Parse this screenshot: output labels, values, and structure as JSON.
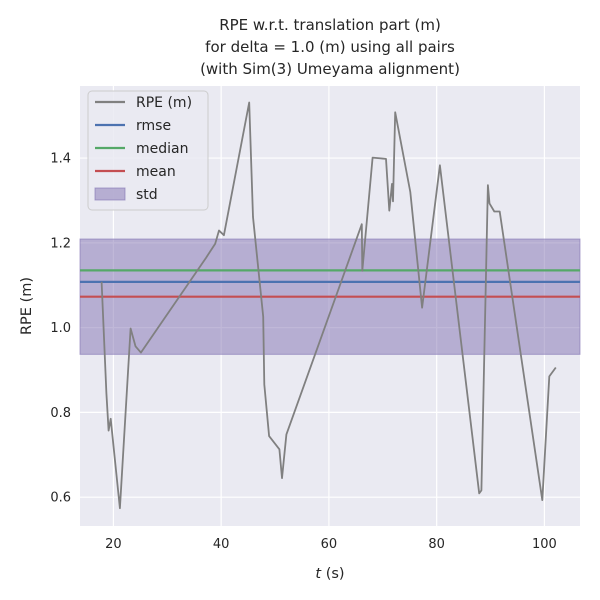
{
  "chart_data": {
    "type": "line",
    "title_lines": [
      "RPE w.r.t. translation part (m)",
      "for delta = 1.0 (m) using all pairs",
      "(with Sim(3) Umeyama alignment)"
    ],
    "xlabel_italic": "t",
    "xlabel_rest": " (s)",
    "ylabel": "RPE (m)",
    "xlim": [
      13.8,
      106.6
    ],
    "ylim": [
      0.532,
      1.57
    ],
    "xticks": [
      20,
      40,
      60,
      80,
      100
    ],
    "yticks": [
      0.6,
      0.8,
      1.0,
      1.2,
      1.4
    ],
    "ytick_labels": [
      "0.6",
      "0.8",
      "1.0",
      "1.2",
      "1.4"
    ],
    "grid": true,
    "legend_position": "top-left",
    "series": [
      {
        "name": "RPE (m)",
        "color": "#808080",
        "x": [
          17.8,
          18.7,
          19.1,
          19.5,
          21.2,
          23.2,
          24.1,
          25.1,
          37.2,
          38.9,
          39.6,
          40.5,
          45.2,
          45.9,
          47.8,
          48.0,
          48.9,
          50.8,
          51.3,
          52.1,
          66.1,
          66.2,
          68.1,
          70.6,
          71.2,
          71.7,
          71.9,
          72.3,
          75.1,
          77.3,
          80.6,
          87.9,
          88.3,
          89.5,
          89.8,
          90.7,
          91.7,
          99.6,
          100.9,
          102.1
        ],
        "y": [
          1.108,
          0.845,
          0.757,
          0.785,
          0.574,
          0.998,
          0.956,
          0.941,
          1.165,
          1.198,
          1.229,
          1.218,
          1.531,
          1.261,
          1.026,
          0.866,
          0.744,
          0.713,
          0.645,
          0.748,
          1.244,
          1.134,
          1.401,
          1.398,
          1.276,
          1.339,
          1.298,
          1.508,
          1.32,
          1.047,
          1.383,
          0.609,
          0.616,
          1.336,
          1.293,
          1.274,
          1.274,
          0.593,
          0.885,
          0.906
        ]
      }
    ],
    "stats": {
      "rmse": 1.108,
      "median": 1.135,
      "mean": 1.073,
      "std_low": 0.937,
      "std_high": 1.209
    },
    "legend": [
      {
        "label": "RPE (m)",
        "kind": "line",
        "color": "#808080"
      },
      {
        "label": "rmse",
        "kind": "line",
        "color": "#4c72b0"
      },
      {
        "label": "median",
        "kind": "line",
        "color": "#55a868"
      },
      {
        "label": "mean",
        "kind": "line",
        "color": "#c44e52"
      },
      {
        "label": "std",
        "kind": "patch",
        "color": "#8172b2"
      }
    ],
    "colors": {
      "background": "#eaeaf2",
      "grid": "#ffffff",
      "rmse": "#4c72b0",
      "median": "#55a868",
      "mean": "#c44e52",
      "std_fill": "#8172b2"
    }
  }
}
